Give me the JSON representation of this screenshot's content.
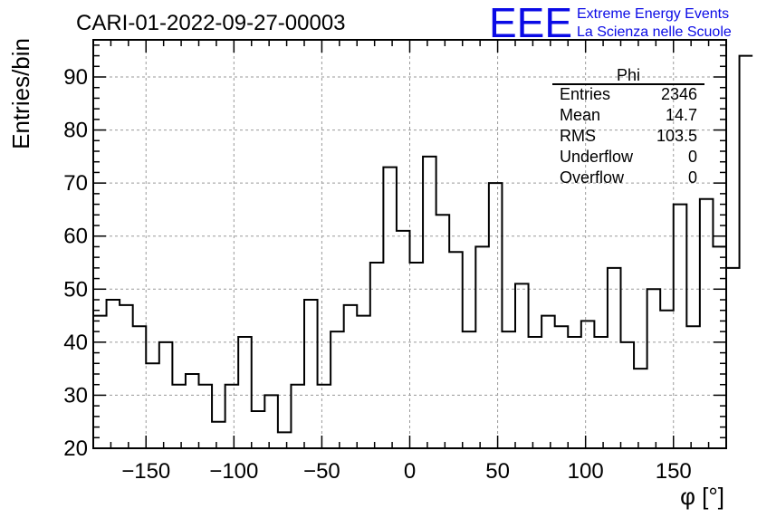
{
  "title": "CARI-01-2022-09-27-00003",
  "logo": {
    "mark": "EEE",
    "line1": "Extreme Energy Events",
    "line2": "La Scienza nelle Scuole",
    "color": "#0a0ae6"
  },
  "stats": {
    "name": "Phi",
    "rows": [
      {
        "label": "Entries",
        "value": "2346"
      },
      {
        "label": "Mean",
        "value": "14.7"
      },
      {
        "label": "RMS",
        "value": "103.5"
      },
      {
        "label": "Underflow",
        "value": "0"
      },
      {
        "label": "Overflow",
        "value": "0"
      }
    ]
  },
  "chart_data": {
    "type": "histogram",
    "xlabel": "φ [°]",
    "ylabel": "Entries/bin",
    "xlim": [
      -180,
      180
    ],
    "ylim": [
      20,
      97
    ],
    "bin_width": 7.5,
    "xticks": [
      -150,
      -100,
      -50,
      0,
      50,
      100,
      150
    ],
    "yticks": [
      20,
      30,
      40,
      50,
      60,
      70,
      80,
      90
    ],
    "grid": true,
    "counts": [
      45,
      48,
      47,
      43,
      36,
      40,
      32,
      34,
      32,
      25,
      32,
      41,
      27,
      30,
      23,
      32,
      48,
      32,
      42,
      47,
      45,
      55,
      73,
      61,
      55,
      75,
      64,
      57,
      42,
      58,
      70,
      42,
      51,
      41,
      45,
      43,
      41,
      44,
      41,
      54,
      40,
      35,
      50,
      46,
      66,
      43,
      67,
      58,
      54,
      94
    ]
  }
}
